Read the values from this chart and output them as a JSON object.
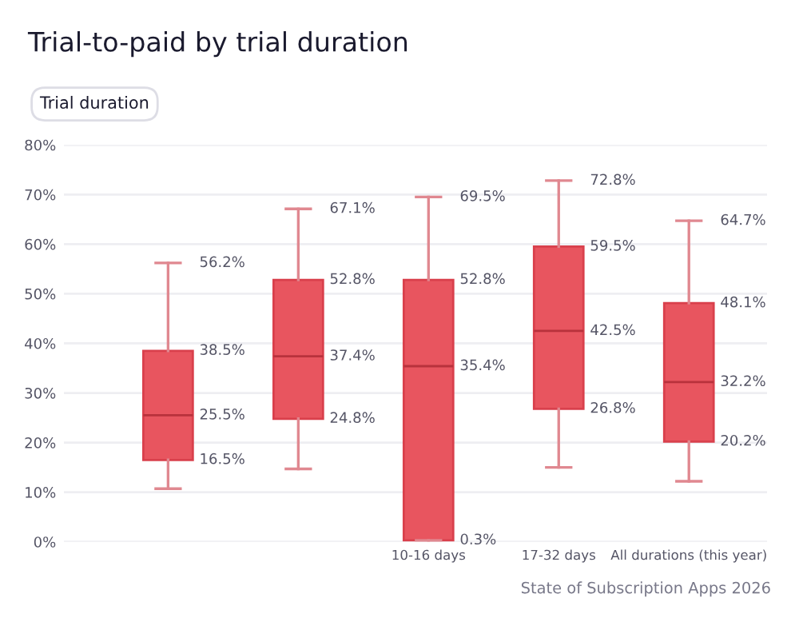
{
  "chart_data": {
    "type": "box",
    "title": "Trial-to-paid by trial duration",
    "categories": [
      null,
      null,
      "10-16 days",
      "17-32 days",
      "All durations (this year)"
    ],
    "boxes": [
      {
        "low": 10.7,
        "q1": 16.5,
        "median": 25.5,
        "q3": 38.5,
        "high": 56.2
      },
      {
        "low": 14.7,
        "q1": 24.8,
        "median": 37.4,
        "q3": 52.8,
        "high": 67.1
      },
      {
        "low": 0.3,
        "q1": 0.3,
        "median": 35.4,
        "q3": 52.8,
        "high": 69.5
      },
      {
        "low": 15.0,
        "q1": 26.8,
        "median": 42.5,
        "q3": 59.5,
        "high": 72.8
      },
      {
        "low": 12.2,
        "q1": 20.2,
        "median": 32.2,
        "q3": 48.1,
        "high": 64.7
      }
    ],
    "value_labels": [
      [
        "56.2%",
        "38.5%",
        "25.5%",
        "16.5%"
      ],
      [
        "67.1%",
        "52.8%",
        "37.4%",
        "24.8%"
      ],
      [
        "69.5%",
        "52.8%",
        "35.4%",
        "0.3%"
      ],
      [
        "72.8%",
        "59.5%",
        "42.5%",
        "26.8%"
      ],
      [
        "64.7%",
        "48.1%",
        "32.2%",
        "20.2%"
      ]
    ],
    "color": "#e8555f",
    "ylim": [
      0,
      80
    ],
    "yticks": [
      {
        "value": 0,
        "label": "0%"
      },
      {
        "value": 10,
        "label": "10%"
      },
      {
        "value": 20,
        "label": "20%"
      },
      {
        "value": 30,
        "label": "30%"
      },
      {
        "value": 40,
        "label": "40%"
      },
      {
        "value": 50,
        "label": "50%"
      },
      {
        "value": 60,
        "label": "60%"
      },
      {
        "value": 70,
        "label": "70%"
      },
      {
        "value": 80,
        "label": "80%"
      }
    ],
    "grid": "y",
    "annotations": [
      "Trial duration",
      "State of Subscription Apps 2026"
    ]
  }
}
